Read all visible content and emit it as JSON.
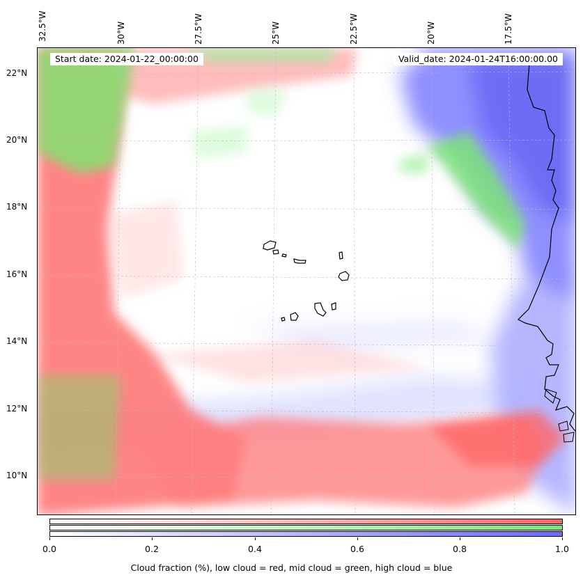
{
  "map": {
    "start_label": "Start date: 2024-01-22_00:00:00",
    "valid_label": "Valid_date: 2024-01-24T16:00:00.00",
    "lon_labels": [
      "32.5°W",
      "30°W",
      "27.5°W",
      "25°W",
      "22.5°W",
      "20°W",
      "17.5°W"
    ],
    "lat_labels": [
      "22°N",
      "20°N",
      "18°N",
      "16°N",
      "14°N",
      "12°N",
      "10°N"
    ],
    "extent": {
      "lon_min": -33.0,
      "lon_max": -15.2,
      "lat_min": 8.9,
      "lat_max": 22.7
    },
    "layers": {
      "low_cloud": "#ff6060",
      "mid_cloud": "#60e060",
      "high_cloud": "#6060ff"
    },
    "coastline_color": "#000000",
    "gridlines": "dashed"
  },
  "colorbar": {
    "ticks": [
      "0.0",
      "0.2",
      "0.4",
      "0.6",
      "0.8",
      "1.0"
    ],
    "caption": "Cloud fraction (%), low cloud = red, mid cloud = green, high cloud = blue",
    "rows": [
      {
        "name": "low",
        "color": "#ff6464"
      },
      {
        "name": "mid",
        "color": "#7be86e"
      },
      {
        "name": "high",
        "color": "#6a6aff"
      }
    ]
  }
}
